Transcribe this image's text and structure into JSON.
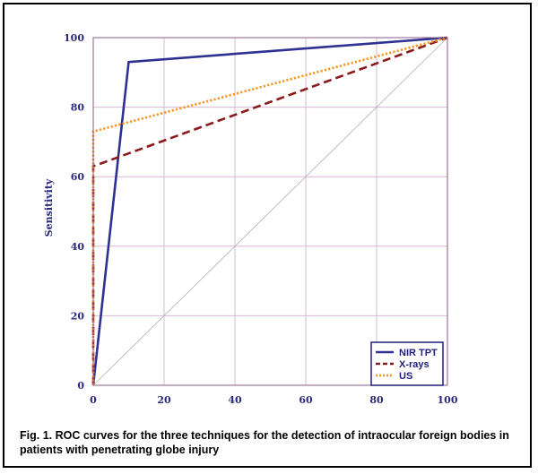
{
  "chart_data": {
    "type": "line",
    "title": "",
    "xlabel": "",
    "ylabel": "Sensitivity",
    "xlim": [
      0,
      100
    ],
    "ylim": [
      0,
      100
    ],
    "xticks": [
      0,
      20,
      40,
      60,
      80,
      100
    ],
    "yticks": [
      0,
      20,
      40,
      60,
      80,
      100
    ],
    "grid": true,
    "legend_position": "bottom-right",
    "series": [
      {
        "name": "NIR TPT",
        "color": "#2e3192",
        "style": "solid",
        "points": [
          [
            0,
            0
          ],
          [
            10,
            93
          ],
          [
            100,
            100
          ]
        ]
      },
      {
        "name": "X-rays",
        "color": "#8b1a1a",
        "style": "dashed",
        "points": [
          [
            0,
            0
          ],
          [
            0,
            63
          ],
          [
            100,
            100
          ]
        ]
      },
      {
        "name": "US",
        "color": "#f7941d",
        "style": "dotted",
        "points": [
          [
            0,
            0
          ],
          [
            0,
            73
          ],
          [
            100,
            100
          ]
        ]
      }
    ],
    "reference_line": {
      "points": [
        [
          0,
          0
        ],
        [
          100,
          100
        ]
      ],
      "color": "#b0b0b0"
    }
  },
  "caption": "Fig. 1. ROC curves for the three techniques for the detection of intraocular foreign bodies in patients with penetrating globe injury"
}
